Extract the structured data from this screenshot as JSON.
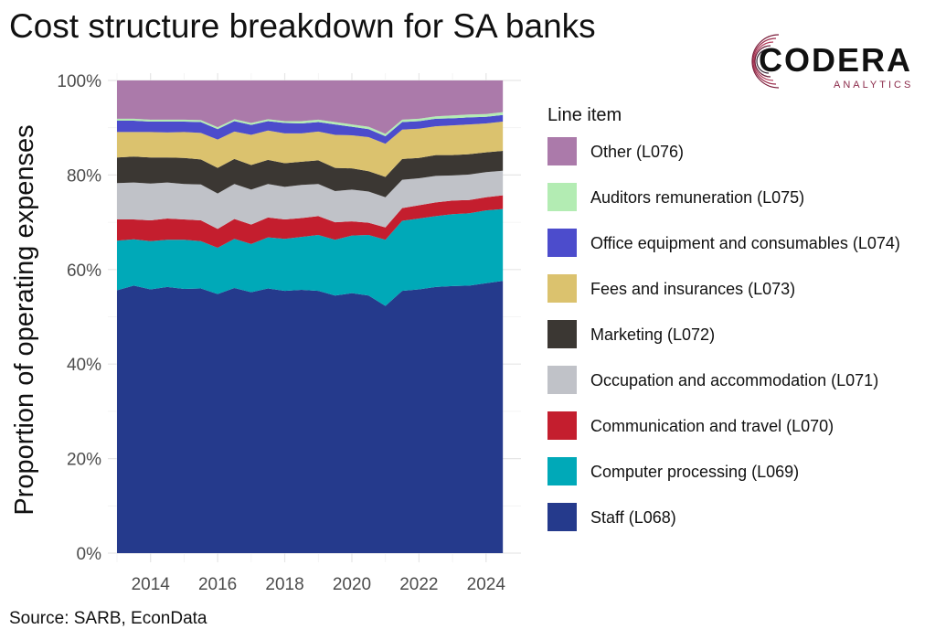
{
  "title": "Cost structure breakdown for SA banks",
  "source": "Source: SARB, EconData",
  "logo": {
    "name": "CODERA",
    "subtitle": "ANALYTICS",
    "accent": "#8b2a4a"
  },
  "chart_data": {
    "type": "area",
    "stacked": true,
    "normalized": true,
    "ylabel": "Proportion of operating expenses",
    "xlabel": "",
    "ylim": [
      0,
      1
    ],
    "xlim": [
      2013.0,
      2024.55
    ],
    "y_ticks": [
      0,
      0.2,
      0.4,
      0.6,
      0.8,
      1.0
    ],
    "y_tick_labels": [
      "0%",
      "20%",
      "40%",
      "60%",
      "80%",
      "100%"
    ],
    "x_ticks": [
      2014,
      2016,
      2018,
      2020,
      2022,
      2024
    ],
    "x_tick_labels": [
      "2014",
      "2016",
      "2018",
      "2020",
      "2022",
      "2024"
    ],
    "grid": true,
    "legend_title": "Line item",
    "legend_position": "right",
    "x": [
      2013.0,
      2013.5,
      2014.0,
      2014.5,
      2015.0,
      2015.5,
      2016.0,
      2016.5,
      2017.0,
      2017.5,
      2018.0,
      2018.5,
      2019.0,
      2019.5,
      2020.0,
      2020.5,
      2021.0,
      2021.5,
      2022.0,
      2022.5,
      2023.0,
      2023.5,
      2024.0,
      2024.5
    ],
    "series": [
      {
        "name": "Staff (L068)",
        "color": "#253a8c",
        "values": [
          0.556,
          0.566,
          0.558,
          0.563,
          0.559,
          0.56,
          0.548,
          0.561,
          0.552,
          0.56,
          0.555,
          0.557,
          0.555,
          0.545,
          0.55,
          0.545,
          0.523,
          0.555,
          0.558,
          0.563,
          0.565,
          0.566,
          0.571,
          0.576
        ]
      },
      {
        "name": "Computer processing (L069)",
        "color": "#00a9b8",
        "values": [
          0.105,
          0.098,
          0.102,
          0.1,
          0.104,
          0.1,
          0.098,
          0.104,
          0.102,
          0.108,
          0.11,
          0.112,
          0.118,
          0.118,
          0.122,
          0.128,
          0.14,
          0.148,
          0.15,
          0.15,
          0.152,
          0.153,
          0.154,
          0.152
        ]
      },
      {
        "name": "Communication and travel (L070)",
        "color": "#c41e2e",
        "values": [
          0.045,
          0.042,
          0.044,
          0.045,
          0.043,
          0.044,
          0.04,
          0.042,
          0.041,
          0.042,
          0.041,
          0.04,
          0.04,
          0.037,
          0.03,
          0.026,
          0.026,
          0.027,
          0.028,
          0.029,
          0.029,
          0.028,
          0.028,
          0.029
        ]
      },
      {
        "name": "Occupation and accommodation (L071)",
        "color": "#c0c2c8",
        "values": [
          0.077,
          0.078,
          0.078,
          0.076,
          0.075,
          0.076,
          0.075,
          0.074,
          0.074,
          0.071,
          0.069,
          0.07,
          0.068,
          0.066,
          0.067,
          0.066,
          0.064,
          0.06,
          0.057,
          0.056,
          0.053,
          0.054,
          0.053,
          0.052
        ]
      },
      {
        "name": "Marketing (L072)",
        "color": "#3b3733",
        "values": [
          0.054,
          0.055,
          0.055,
          0.053,
          0.055,
          0.053,
          0.054,
          0.053,
          0.052,
          0.051,
          0.05,
          0.049,
          0.05,
          0.049,
          0.045,
          0.043,
          0.043,
          0.044,
          0.043,
          0.044,
          0.043,
          0.043,
          0.042,
          0.042
        ]
      },
      {
        "name": "Fees and insurances (L073)",
        "color": "#dbc26e",
        "values": [
          0.054,
          0.052,
          0.054,
          0.053,
          0.055,
          0.056,
          0.06,
          0.058,
          0.064,
          0.062,
          0.063,
          0.06,
          0.061,
          0.07,
          0.07,
          0.072,
          0.07,
          0.062,
          0.062,
          0.061,
          0.063,
          0.063,
          0.061,
          0.062
        ]
      },
      {
        "name": "Office equipment and consumables (L074)",
        "color": "#4c4ccc",
        "values": [
          0.024,
          0.024,
          0.022,
          0.023,
          0.022,
          0.023,
          0.022,
          0.022,
          0.021,
          0.02,
          0.022,
          0.021,
          0.02,
          0.022,
          0.018,
          0.017,
          0.016,
          0.016,
          0.016,
          0.016,
          0.015,
          0.015,
          0.014,
          0.014
        ]
      },
      {
        "name": "Auditors remuneration (L075)",
        "color": "#b3ecb3",
        "values": [
          0.004,
          0.004,
          0.004,
          0.004,
          0.004,
          0.004,
          0.004,
          0.004,
          0.004,
          0.004,
          0.004,
          0.005,
          0.005,
          0.005,
          0.005,
          0.005,
          0.005,
          0.005,
          0.005,
          0.005,
          0.006,
          0.006,
          0.006,
          0.006
        ]
      },
      {
        "name": "Other (L076)",
        "color": "#ab7aaa",
        "values": [
          0.081,
          0.081,
          0.083,
          0.083,
          0.083,
          0.084,
          0.099,
          0.082,
          0.09,
          0.082,
          0.086,
          0.086,
          0.083,
          0.088,
          0.093,
          0.098,
          0.113,
          0.083,
          0.081,
          0.076,
          0.074,
          0.072,
          0.071,
          0.067
        ]
      }
    ]
  }
}
